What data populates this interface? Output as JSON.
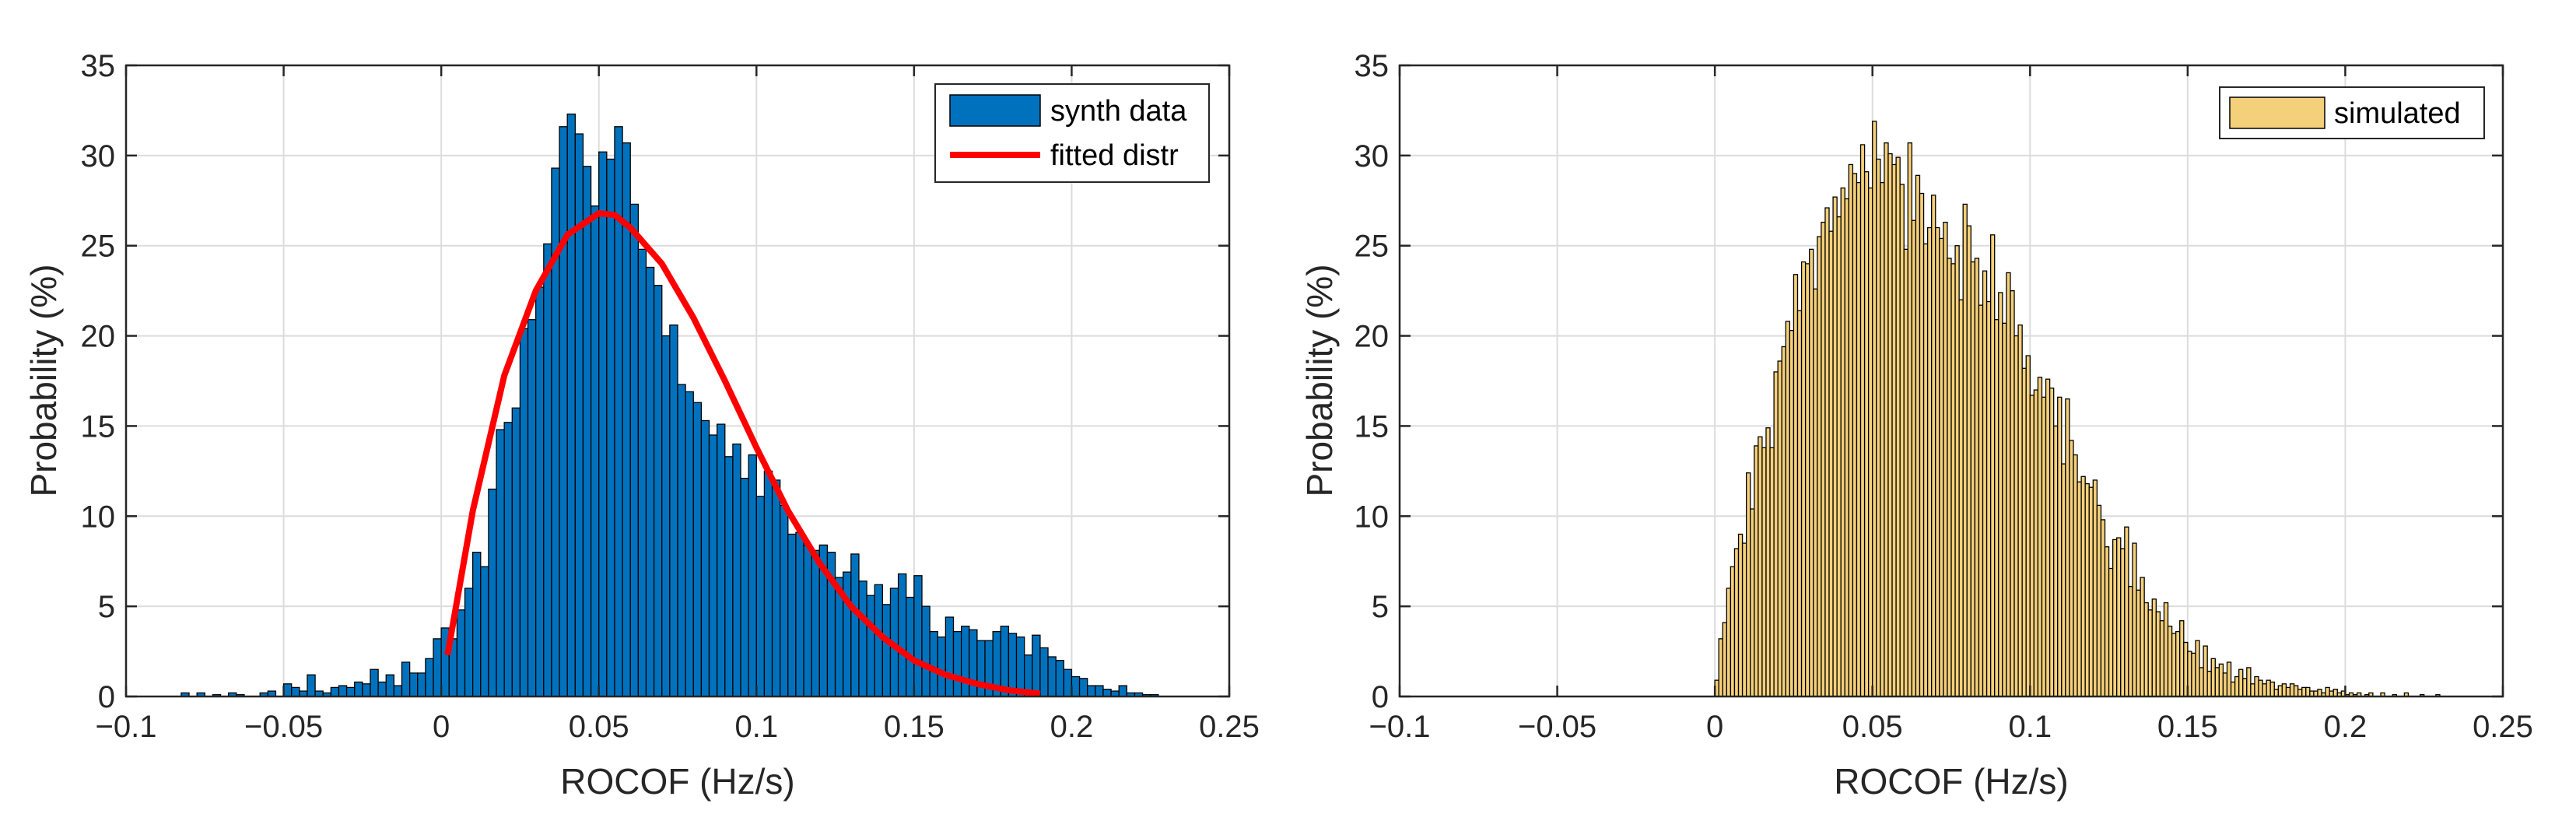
{
  "chart_data": [
    {
      "type": "histogram",
      "xlabel": "ROCOF (Hz/s)",
      "ylabel": "Probability (%)",
      "xlim": [
        -0.1,
        0.25
      ],
      "ylim": [
        0,
        35
      ],
      "xticks": [
        -0.1,
        -0.05,
        0,
        0.05,
        0.1,
        0.15,
        0.2,
        0.25
      ],
      "xtick_labels": [
        "−0.1",
        "−0.05",
        "0",
        "0.05",
        "0.1",
        "0.15",
        "0.2",
        "0.25"
      ],
      "yticks": [
        0,
        5,
        10,
        15,
        20,
        25,
        30,
        35
      ],
      "ytick_labels": [
        "0",
        "5",
        "10",
        "15",
        "20",
        "25",
        "30",
        "35"
      ],
      "grid": true,
      "legend_position": "top-right",
      "legend": [
        "synth data",
        "fitted distr"
      ],
      "bar_color": "#0072BD",
      "line_color": "#FF0000",
      "bin_width": 0.0025,
      "bins_x": [
        -0.0825,
        -0.08,
        -0.0775,
        -0.075,
        -0.0725,
        -0.07,
        -0.0675,
        -0.065,
        -0.0625,
        -0.06,
        -0.0575,
        -0.055,
        -0.0525,
        -0.05,
        -0.0475,
        -0.045,
        -0.0425,
        -0.04,
        -0.0375,
        -0.035,
        -0.0325,
        -0.03,
        -0.0275,
        -0.025,
        -0.0225,
        -0.02,
        -0.0175,
        -0.015,
        -0.0125,
        -0.01,
        -0.0075,
        -0.005,
        -0.0025,
        0,
        0.0025,
        0.005,
        0.0075,
        0.01,
        0.0125,
        0.015,
        0.0175,
        0.02,
        0.0225,
        0.025,
        0.0275,
        0.03,
        0.0325,
        0.035,
        0.0375,
        0.04,
        0.0425,
        0.045,
        0.0475,
        0.05,
        0.0525,
        0.055,
        0.0575,
        0.06,
        0.0625,
        0.065,
        0.0675,
        0.07,
        0.0725,
        0.075,
        0.0775,
        0.08,
        0.0825,
        0.085,
        0.0875,
        0.09,
        0.0925,
        0.095,
        0.0975,
        0.1,
        0.1025,
        0.105,
        0.1075,
        0.11,
        0.1125,
        0.115,
        0.1175,
        0.12,
        0.1225,
        0.125,
        0.1275,
        0.13,
        0.1325,
        0.135,
        0.1375,
        0.14,
        0.1425,
        0.145,
        0.1475,
        0.15,
        0.1525,
        0.155,
        0.1575,
        0.16,
        0.1625,
        0.165,
        0.1675,
        0.17,
        0.1725,
        0.175,
        0.1775,
        0.18,
        0.1825,
        0.185,
        0.1875,
        0.19,
        0.1925,
        0.195,
        0.1975,
        0.2,
        0.2025,
        0.205,
        0.2075,
        0.21,
        0.2125,
        0.215,
        0.2175,
        0.22,
        0.2225,
        0.225
      ],
      "values": [
        0.2,
        0,
        0.2,
        0,
        0.1,
        0,
        0.2,
        0.1,
        0,
        0,
        0.2,
        0.3,
        0,
        0.7,
        0.5,
        0.3,
        1.2,
        0.3,
        0.2,
        0.5,
        0.6,
        0.5,
        0.8,
        0.7,
        1.5,
        0.8,
        1.2,
        0.6,
        1.9,
        1.3,
        1.3,
        2.1,
        3.2,
        3.8,
        3.2,
        4.8,
        6.0,
        8.0,
        7.2,
        11.5,
        14.8,
        15.2,
        16.0,
        20.4,
        20.9,
        22.7,
        25.1,
        29.3,
        31.6,
        32.3,
        31.2,
        29.4,
        27.2,
        30.2,
        29.8,
        31.6,
        30.7,
        27.3,
        24.8,
        23.8,
        22.8,
        20.0,
        20.6,
        17.3,
        16.9,
        16.3,
        15.3,
        14.5,
        15.1,
        13.3,
        14.0,
        12.1,
        13.4,
        11.1,
        12.5,
        12.0,
        10.6,
        9.0,
        9.1,
        8.4,
        8.1,
        8.4,
        8.0,
        6.6,
        6.9,
        7.9,
        6.4,
        5.6,
        6.2,
        5.1,
        6.0,
        6.8,
        5.5,
        6.7,
        5.0,
        3.6,
        3.3,
        4.4,
        3.6,
        3.9,
        3.7,
        3.1,
        3.1,
        3.6,
        3.9,
        3.5,
        3.3,
        2.3,
        3.4,
        2.7,
        2.2,
        2.0,
        1.5,
        1.1,
        1.0,
        0.6,
        0.6,
        0.4,
        0.3,
        0.6,
        0.2,
        0.2,
        0.1,
        0.1
      ],
      "fit_curve": {
        "x": [
          0.002,
          0.01,
          0.02,
          0.03,
          0.04,
          0.05,
          0.055,
          0.06,
          0.07,
          0.08,
          0.09,
          0.1,
          0.11,
          0.12,
          0.13,
          0.14,
          0.15,
          0.16,
          0.17,
          0.18,
          0.19
        ],
        "y": [
          2.3,
          10.3,
          17.8,
          22.5,
          25.6,
          26.8,
          26.7,
          26.0,
          24.0,
          21.0,
          17.5,
          13.8,
          10.3,
          7.4,
          5.0,
          3.3,
          2.0,
          1.2,
          0.7,
          0.35,
          0.15
        ]
      }
    },
    {
      "type": "histogram",
      "xlabel": "ROCOF (Hz/s)",
      "ylabel": "Probability (%)",
      "xlim": [
        -0.1,
        0.25
      ],
      "ylim": [
        0,
        35
      ],
      "xticks": [
        -0.1,
        -0.05,
        0,
        0.05,
        0.1,
        0.15,
        0.2,
        0.25
      ],
      "xtick_labels": [
        "−0.1",
        "−0.05",
        "0",
        "0.05",
        "0.1",
        "0.15",
        "0.2",
        "0.25"
      ],
      "yticks": [
        0,
        5,
        10,
        15,
        20,
        25,
        30,
        35
      ],
      "ytick_labels": [
        "0",
        "5",
        "10",
        "15",
        "20",
        "25",
        "30",
        "35"
      ],
      "grid": true,
      "legend_position": "top-right",
      "legend": [
        "simulated"
      ],
      "bar_color": "#F5D07A",
      "bin_width": 0.00125,
      "bins_x": [
        0,
        0.00125,
        0.0025,
        0.00375,
        0.005,
        0.00625,
        0.0075,
        0.00875,
        0.01,
        0.01125,
        0.0125,
        0.01375,
        0.015,
        0.01625,
        0.0175,
        0.01875,
        0.02,
        0.02125,
        0.0225,
        0.02375,
        0.025,
        0.02625,
        0.0275,
        0.02875,
        0.03,
        0.03125,
        0.0325,
        0.03375,
        0.035,
        0.03625,
        0.0375,
        0.03875,
        0.04,
        0.04125,
        0.0425,
        0.04375,
        0.045,
        0.04625,
        0.0475,
        0.04875,
        0.05,
        0.05125,
        0.0525,
        0.05375,
        0.055,
        0.05625,
        0.0575,
        0.05875,
        0.06,
        0.06125,
        0.0625,
        0.06375,
        0.065,
        0.06625,
        0.0675,
        0.06875,
        0.07,
        0.07125,
        0.0725,
        0.07375,
        0.075,
        0.07625,
        0.0775,
        0.07875,
        0.08,
        0.08125,
        0.0825,
        0.08375,
        0.085,
        0.08625,
        0.0875,
        0.08875,
        0.09,
        0.09125,
        0.0925,
        0.09375,
        0.095,
        0.09625,
        0.0975,
        0.09875,
        0.1,
        0.10125,
        0.1025,
        0.10375,
        0.105,
        0.10625,
        0.1075,
        0.10875,
        0.11,
        0.11125,
        0.1125,
        0.11375,
        0.115,
        0.11625,
        0.1175,
        0.11875,
        0.12,
        0.12125,
        0.1225,
        0.12375,
        0.125,
        0.12625,
        0.1275,
        0.12875,
        0.13,
        0.13125,
        0.1325,
        0.13375,
        0.135,
        0.13625,
        0.1375,
        0.13875,
        0.14,
        0.14125,
        0.1425,
        0.14375,
        0.145,
        0.14625,
        0.1475,
        0.14875,
        0.15,
        0.15125,
        0.1525,
        0.15375,
        0.155,
        0.15625,
        0.1575,
        0.15875,
        0.16,
        0.16125,
        0.1625,
        0.16375,
        0.165,
        0.16625,
        0.1675,
        0.16875,
        0.17,
        0.17125,
        0.1725,
        0.17375,
        0.175,
        0.17625,
        0.1775,
        0.17875,
        0.18,
        0.18125,
        0.1825,
        0.18375,
        0.185,
        0.18625,
        0.1875,
        0.18875,
        0.19,
        0.19125,
        0.1925,
        0.19375,
        0.195,
        0.19625,
        0.1975,
        0.19875,
        0.2,
        0.20125,
        0.2025,
        0.20375,
        0.205,
        0.20625,
        0.2075,
        0.20875,
        0.21,
        0.21125,
        0.2125,
        0.21375,
        0.215,
        0.21625,
        0.2175,
        0.21875,
        0.22,
        0.22125,
        0.2225,
        0.22375,
        0.225,
        0.22625,
        0.2275,
        0.22875
      ],
      "values": [
        0.9,
        3.2,
        4.1,
        6.0,
        7.2,
        8.2,
        9.0,
        8.5,
        12.4,
        10.4,
        13.9,
        14.4,
        13.8,
        14.9,
        13.8,
        18.0,
        18.6,
        19.4,
        20.8,
        20.3,
        23.4,
        21.4,
        24.1,
        24.0,
        24.8,
        22.6,
        25.5,
        26.3,
        27.1,
        25.8,
        27.7,
        26.6,
        28.2,
        27.6,
        29.5,
        29.0,
        28.5,
        30.6,
        29.1,
        28.2,
        31.9,
        29.8,
        28.5,
        30.7,
        30.1,
        29.5,
        29.9,
        28.4,
        24.8,
        30.7,
        26.4,
        28.9,
        27.9,
        25.1,
        26.0,
        27.8,
        26.0,
        25.4,
        26.3,
        24.3,
        24.0,
        25.0,
        22.0,
        27.3,
        26.1,
        24.1,
        24.3,
        21.7,
        23.6,
        21.9,
        25.6,
        20.9,
        22.4,
        20.7,
        23.5,
        22.5,
        20.0,
        20.6,
        18.2,
        18.9,
        16.7,
        17.0,
        17.7,
        16.6,
        17.6,
        17.1,
        15.0,
        16.6,
        12.9,
        16.5,
        14.2,
        13.4,
        11.9,
        12.2,
        11.8,
        11.6,
        12.0,
        10.6,
        9.8,
        8.3,
        7.1,
        8.7,
        8.8,
        8.2,
        9.4,
        6.1,
        8.5,
        5.9,
        6.6,
        5.2,
        4.8,
        5.4,
        4.7,
        4.2,
        5.2,
        3.9,
        3.5,
        3.6,
        4.2,
        3.0,
        2.5,
        2.4,
        3.1,
        1.6,
        2.8,
        1.4,
        2.1,
        1.6,
        1.8,
        1.3,
        1.9,
        0.8,
        1.1,
        1.5,
        1.0,
        1.6,
        0.7,
        1.1,
        0.9,
        0.7,
        0.9,
        0.8,
        0.4,
        0.6,
        0.7,
        0.5,
        0.7,
        0.6,
        0.4,
        0.5,
        0.5,
        0.3,
        0.3,
        0.4,
        0.2,
        0.5,
        0.3,
        0.4,
        0.2,
        0.3,
        0.1,
        0.2,
        0.1,
        0.2,
        0,
        0.1,
        0.2,
        0,
        0,
        0.2,
        0,
        0,
        0.1,
        0,
        0,
        0.2,
        0,
        0,
        0,
        0.1,
        0,
        0,
        0,
        0.1,
        0,
        0,
        0,
        0.1
      ]
    }
  ]
}
